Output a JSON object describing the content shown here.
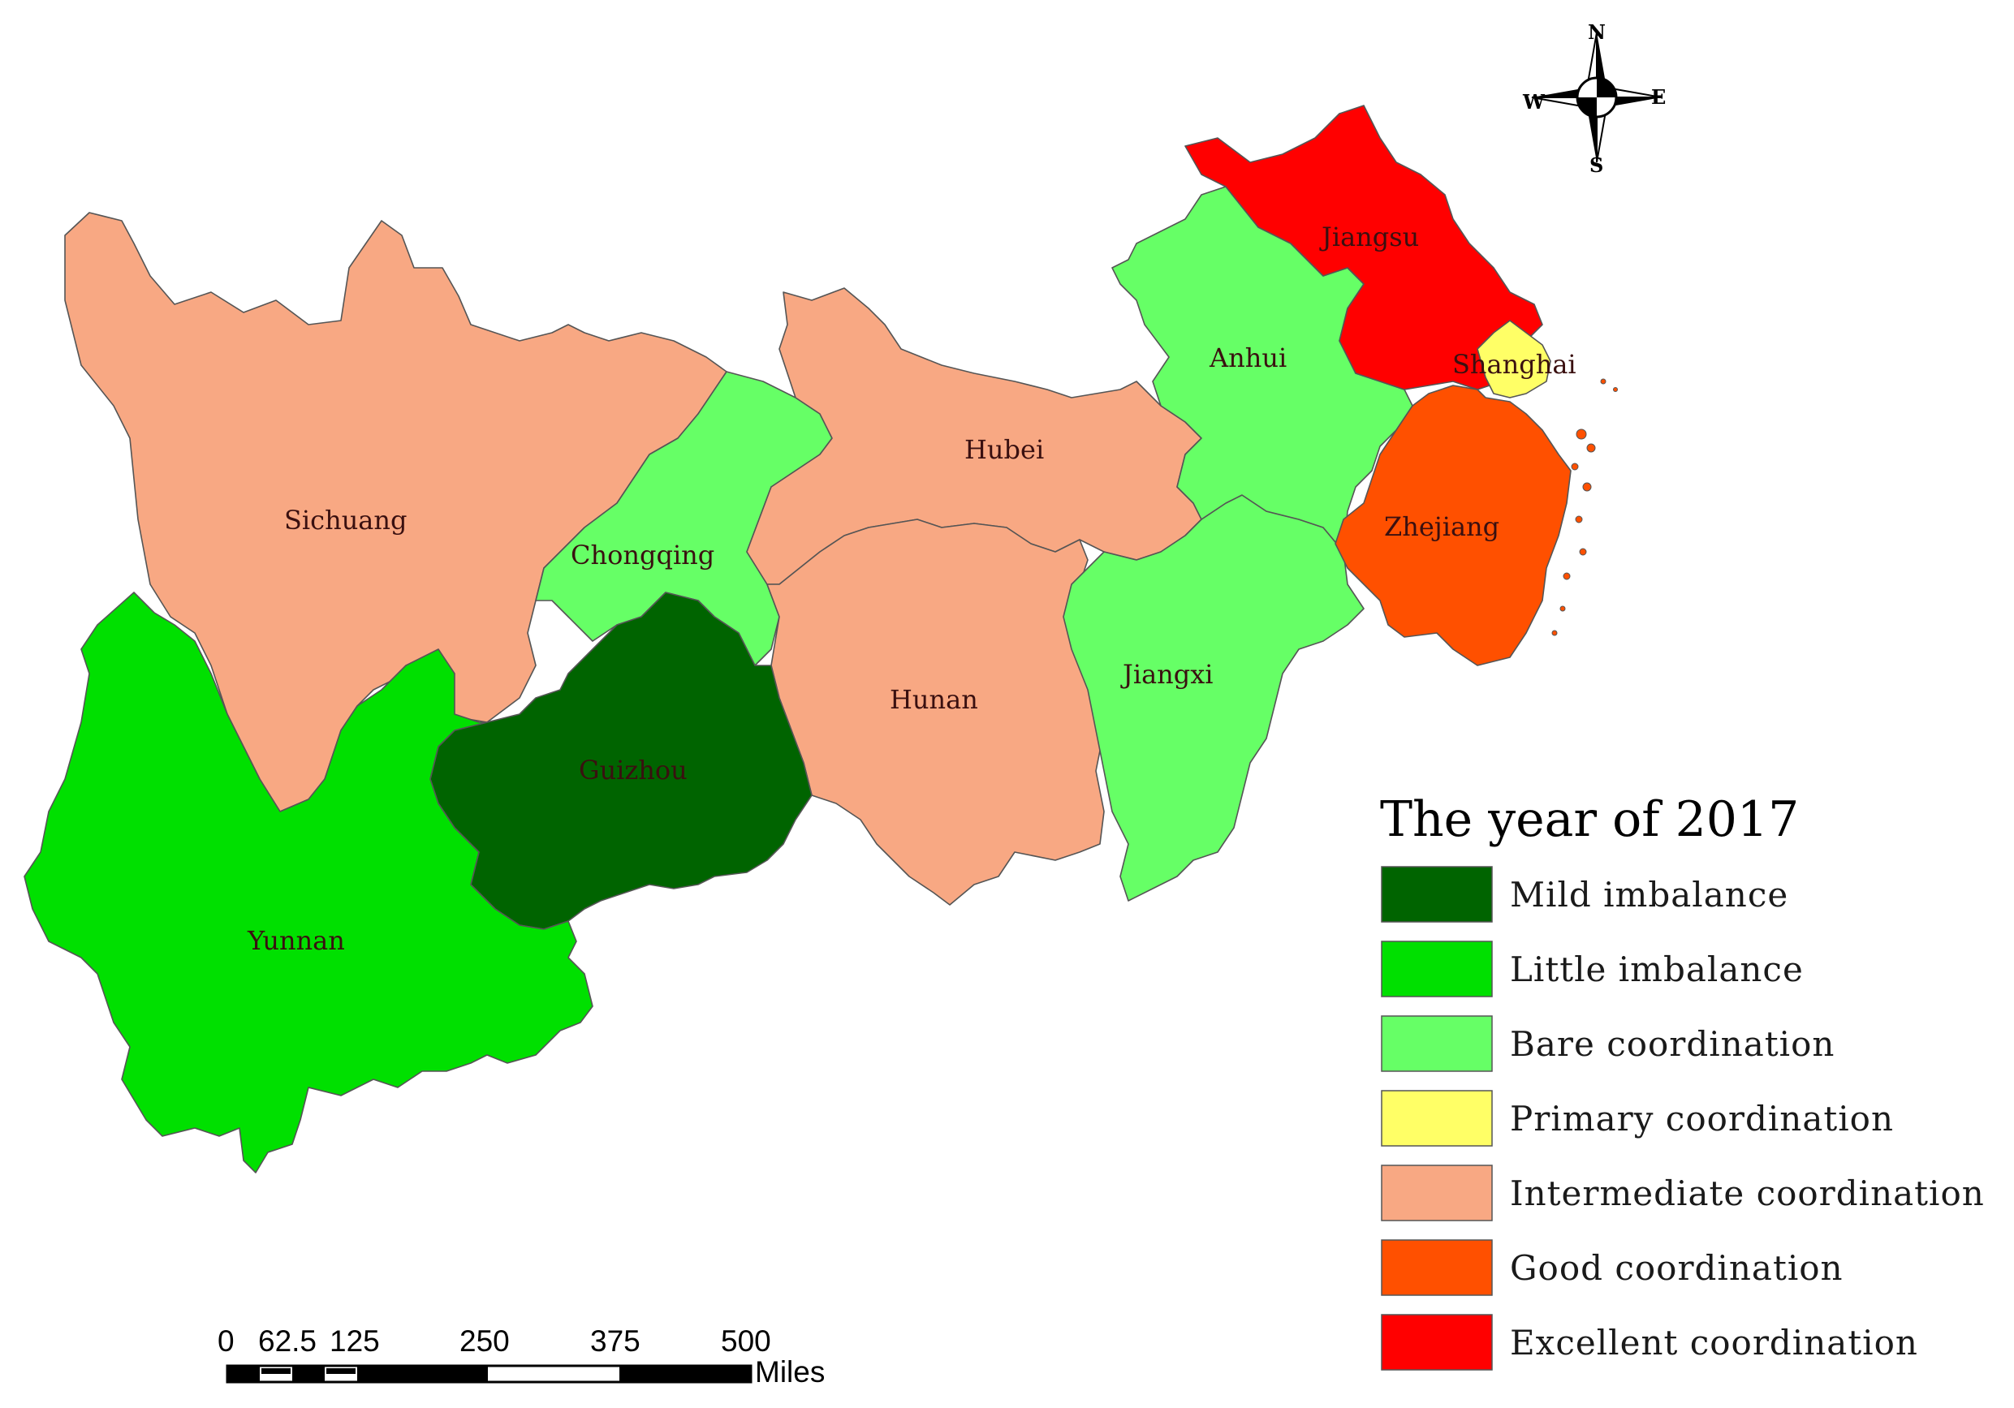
{
  "legend": {
    "title": "The year of 2017",
    "items": [
      {
        "key": "mild",
        "label": "Mild imbalance",
        "color": "#006400"
      },
      {
        "key": "little",
        "label": "Little imbalance",
        "color": "#00e000"
      },
      {
        "key": "bare",
        "label": "Bare coordination",
        "color": "#66ff66"
      },
      {
        "key": "primary",
        "label": "Primary coordination",
        "color": "#ffff66"
      },
      {
        "key": "intermediate",
        "label": "Intermediate coordination",
        "color": "#f8a883"
      },
      {
        "key": "good",
        "label": "Good coordination",
        "color": "#ff5000"
      },
      {
        "key": "excellent",
        "label": "Excellent coordination",
        "color": "#ff0000"
      }
    ]
  },
  "regions": [
    {
      "name": "Sichuang",
      "category": "intermediate"
    },
    {
      "name": "Chongqing",
      "category": "bare"
    },
    {
      "name": "Hubei",
      "category": "intermediate"
    },
    {
      "name": "Hunan",
      "category": "intermediate"
    },
    {
      "name": "Guizhou",
      "category": "mild"
    },
    {
      "name": "Yunnan",
      "category": "little"
    },
    {
      "name": "Jiangxi",
      "category": "bare"
    },
    {
      "name": "Anhui",
      "category": "bare"
    },
    {
      "name": "Jiangsu",
      "category": "excellent"
    },
    {
      "name": "Shanghai",
      "category": "primary"
    },
    {
      "name": "Zhejiang",
      "category": "good"
    }
  ],
  "scale_bar": {
    "ticks": [
      "0",
      "62.5",
      "125",
      "250",
      "375",
      "500"
    ],
    "unit": "Miles"
  },
  "compass": {
    "n": "N",
    "s": "S",
    "e": "E",
    "w": "W"
  }
}
